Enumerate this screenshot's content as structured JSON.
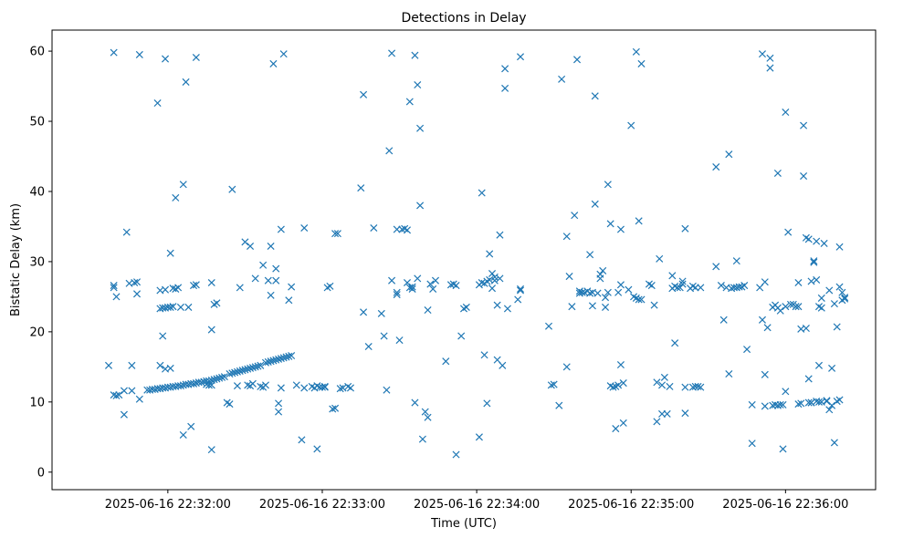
{
  "chart_data": {
    "type": "scatter",
    "title": "Detections in Delay",
    "xlabel": "Time (UTC)",
    "ylabel": "Bistatic Delay (km)",
    "marker": "x",
    "color": "#1f77b4",
    "x_unit": "seconds after 2025-06-16 22:32:00",
    "xlim": [
      -45,
      275
    ],
    "ylim": [
      -2.5,
      63
    ],
    "xticks": [
      {
        "value": 0,
        "label": "2025-06-16 22:32:00"
      },
      {
        "value": 60,
        "label": "2025-06-16 22:33:00"
      },
      {
        "value": 120,
        "label": "2025-06-16 22:34:00"
      },
      {
        "value": 180,
        "label": "2025-06-16 22:35:00"
      },
      {
        "value": 240,
        "label": "2025-06-16 22:36:00"
      }
    ],
    "yticks": [
      {
        "value": 0,
        "label": "0"
      },
      {
        "value": 10,
        "label": "10"
      },
      {
        "value": 20,
        "label": "20"
      },
      {
        "value": 30,
        "label": "30"
      },
      {
        "value": 40,
        "label": "40"
      },
      {
        "value": 50,
        "label": "50"
      },
      {
        "value": 60,
        "label": "60"
      }
    ],
    "points": [
      [
        -23,
        15.2
      ],
      [
        -21,
        26.3
      ],
      [
        -21,
        26.6
      ],
      [
        -20,
        25.0
      ],
      [
        -21,
        11.0
      ],
      [
        -20,
        10.9
      ],
      [
        -19,
        11.0
      ],
      [
        -17,
        8.2
      ],
      [
        -17,
        11.6
      ],
      [
        -16,
        34.2
      ],
      [
        -15,
        26.9
      ],
      [
        -14,
        15.2
      ],
      [
        -14,
        11.6
      ],
      [
        -13,
        27.0
      ],
      [
        -12,
        27.1
      ],
      [
        -12,
        25.4
      ],
      [
        -11,
        10.4
      ],
      [
        -21,
        59.8
      ],
      [
        -11,
        59.5
      ],
      [
        -8,
        11.7
      ],
      [
        -7,
        11.7
      ],
      [
        -6,
        11.8
      ],
      [
        -5,
        11.8
      ],
      [
        -4,
        11.9
      ],
      [
        -3,
        11.9
      ],
      [
        -2,
        12.0
      ],
      [
        -1,
        12.0
      ],
      [
        0,
        12.1
      ],
      [
        1,
        12.1
      ],
      [
        2,
        12.2
      ],
      [
        3,
        12.2
      ],
      [
        4,
        12.3
      ],
      [
        5,
        12.3
      ],
      [
        6,
        12.4
      ],
      [
        7,
        12.5
      ],
      [
        8,
        12.5
      ],
      [
        9,
        12.6
      ],
      [
        10,
        12.6
      ],
      [
        11,
        12.7
      ],
      [
        12,
        12.8
      ],
      [
        13,
        12.8
      ],
      [
        14,
        12.9
      ],
      [
        15,
        13.0
      ],
      [
        16,
        13.0
      ],
      [
        17,
        13.1
      ],
      [
        18,
        13.2
      ],
      [
        19,
        13.3
      ],
      [
        20,
        13.4
      ],
      [
        21,
        13.5
      ],
      [
        22,
        13.6
      ],
      [
        24,
        14.0
      ],
      [
        25,
        14.1
      ],
      [
        26,
        14.2
      ],
      [
        27,
        14.3
      ],
      [
        28,
        14.4
      ],
      [
        29,
        14.5
      ],
      [
        30,
        14.6
      ],
      [
        31,
        14.7
      ],
      [
        32,
        14.8
      ],
      [
        33,
        14.9
      ],
      [
        34,
        15.0
      ],
      [
        35,
        15.1
      ],
      [
        36,
        15.2
      ],
      [
        38,
        15.6
      ],
      [
        39,
        15.7
      ],
      [
        40,
        15.8
      ],
      [
        41,
        15.9
      ],
      [
        42,
        16.0
      ],
      [
        43,
        16.1
      ],
      [
        44,
        16.2
      ],
      [
        45,
        16.3
      ],
      [
        46,
        16.4
      ],
      [
        47,
        16.5
      ],
      [
        48,
        16.6
      ],
      [
        -3,
        15.2
      ],
      [
        -3,
        23.3
      ],
      [
        -2,
        23.4
      ],
      [
        -1,
        23.4
      ],
      [
        0,
        23.5
      ],
      [
        1,
        23.5
      ],
      [
        2,
        23.6
      ],
      [
        -2,
        19.4
      ],
      [
        -3,
        25.9
      ],
      [
        -1,
        26.0
      ],
      [
        2,
        26.2
      ],
      [
        3,
        26.1
      ],
      [
        4,
        26.3
      ],
      [
        -1,
        14.7
      ],
      [
        1,
        14.8
      ],
      [
        -4,
        52.6
      ],
      [
        -1,
        58.9
      ],
      [
        1,
        31.2
      ],
      [
        3,
        39.1
      ],
      [
        5,
        23.5
      ],
      [
        6,
        41.0
      ],
      [
        7,
        55.6
      ],
      [
        8,
        23.5
      ],
      [
        9,
        6.5
      ],
      [
        10,
        26.6
      ],
      [
        11,
        26.7
      ],
      [
        11,
        59.1
      ],
      [
        6,
        5.3
      ],
      [
        15,
        12.5
      ],
      [
        16,
        12.4
      ],
      [
        17,
        12.4
      ],
      [
        17,
        3.2
      ],
      [
        17,
        20.3
      ],
      [
        17,
        27.0
      ],
      [
        18,
        23.9
      ],
      [
        19,
        24.1
      ],
      [
        23,
        9.9
      ],
      [
        24,
        9.7
      ],
      [
        25,
        40.3
      ],
      [
        27,
        12.3
      ],
      [
        28,
        26.3
      ],
      [
        30,
        32.8
      ],
      [
        31,
        12.4
      ],
      [
        32,
        12.3
      ],
      [
        32,
        32.2
      ],
      [
        33,
        12.6
      ],
      [
        34,
        27.6
      ],
      [
        36,
        12.2
      ],
      [
        37,
        12.1
      ],
      [
        37,
        29.5
      ],
      [
        38,
        12.4
      ],
      [
        39,
        27.3
      ],
      [
        40,
        32.2
      ],
      [
        40,
        25.2
      ],
      [
        41,
        58.2
      ],
      [
        42,
        29.0
      ],
      [
        42,
        27.3
      ],
      [
        43,
        9.8
      ],
      [
        43,
        8.6
      ],
      [
        44,
        34.6
      ],
      [
        45,
        59.6
      ],
      [
        44,
        12.0
      ],
      [
        47,
        24.5
      ],
      [
        48,
        26.4
      ],
      [
        50,
        12.4
      ],
      [
        53,
        34.8
      ],
      [
        52,
        4.6
      ],
      [
        53,
        12.0
      ],
      [
        56,
        12.2
      ],
      [
        57,
        12.0
      ],
      [
        58,
        12.3
      ],
      [
        59,
        12.1
      ],
      [
        60,
        12.1
      ],
      [
        61,
        12.2
      ],
      [
        62,
        26.3
      ],
      [
        63,
        26.5
      ],
      [
        65,
        34.0
      ],
      [
        66,
        34.0
      ],
      [
        58,
        3.3
      ],
      [
        61,
        12.1
      ],
      [
        64,
        9.0
      ],
      [
        65,
        9.1
      ],
      [
        67,
        11.9
      ],
      [
        68,
        12.0
      ],
      [
        70,
        12.2
      ],
      [
        71,
        12.0
      ],
      [
        75,
        40.5
      ],
      [
        76,
        53.8
      ],
      [
        76,
        22.8
      ],
      [
        78,
        17.9
      ],
      [
        80,
        34.8
      ],
      [
        83,
        22.6
      ],
      [
        84,
        19.4
      ],
      [
        85,
        11.7
      ],
      [
        86,
        45.8
      ],
      [
        87,
        59.7
      ],
      [
        87,
        27.3
      ],
      [
        89,
        25.3
      ],
      [
        89,
        25.6
      ],
      [
        89,
        34.6
      ],
      [
        90,
        18.8
      ],
      [
        91,
        34.6
      ],
      [
        92,
        34.7
      ],
      [
        93,
        27.0
      ],
      [
        93,
        34.5
      ],
      [
        94,
        26.3
      ],
      [
        95,
        26.1
      ],
      [
        95,
        26.4
      ],
      [
        94,
        52.8
      ],
      [
        96,
        59.4
      ],
      [
        97,
        55.2
      ],
      [
        96,
        9.9
      ],
      [
        97,
        27.6
      ],
      [
        98,
        38.0
      ],
      [
        98,
        49.0
      ],
      [
        99,
        4.7
      ],
      [
        100,
        8.6
      ],
      [
        101,
        7.8
      ],
      [
        101,
        23.1
      ],
      [
        102,
        26.8
      ],
      [
        103,
        26.1
      ],
      [
        104,
        27.3
      ],
      [
        108,
        15.8
      ],
      [
        110,
        26.7
      ],
      [
        111,
        26.8
      ],
      [
        112,
        26.6
      ],
      [
        114,
        19.4
      ],
      [
        115,
        23.3
      ],
      [
        116,
        23.5
      ],
      [
        112,
        2.5
      ],
      [
        121,
        5.0
      ],
      [
        121,
        26.7
      ],
      [
        122,
        27.0
      ],
      [
        122,
        39.8
      ],
      [
        123,
        16.7
      ],
      [
        123,
        26.9
      ],
      [
        124,
        27.2
      ],
      [
        124,
        9.8
      ],
      [
        125,
        31.1
      ],
      [
        125,
        27.4
      ],
      [
        126,
        28.3
      ],
      [
        126,
        26.2
      ],
      [
        127,
        27.3
      ],
      [
        127,
        27.8
      ],
      [
        128,
        16.0
      ],
      [
        128,
        23.8
      ],
      [
        129,
        27.6
      ],
      [
        129,
        33.8
      ],
      [
        130,
        15.2
      ],
      [
        131,
        57.5
      ],
      [
        131,
        54.7
      ],
      [
        132,
        23.3
      ],
      [
        136,
        24.6
      ],
      [
        137,
        25.9
      ],
      [
        137,
        26.1
      ],
      [
        137,
        59.2
      ],
      [
        148,
        20.8
      ],
      [
        149,
        12.4
      ],
      [
        150,
        12.5
      ],
      [
        152,
        9.5
      ],
      [
        153,
        56.0
      ],
      [
        155,
        15.0
      ],
      [
        155,
        33.6
      ],
      [
        156,
        27.9
      ],
      [
        157,
        23.6
      ],
      [
        158,
        36.6
      ],
      [
        159,
        58.8
      ],
      [
        160,
        25.8
      ],
      [
        160,
        25.5
      ],
      [
        161,
        25.6
      ],
      [
        162,
        25.6
      ],
      [
        163,
        25.8
      ],
      [
        164,
        31.0
      ],
      [
        164,
        25.5
      ],
      [
        165,
        25.6
      ],
      [
        165,
        23.7
      ],
      [
        166,
        38.2
      ],
      [
        166,
        53.6
      ],
      [
        167,
        25.5
      ],
      [
        168,
        28.2
      ],
      [
        168,
        27.6
      ],
      [
        169,
        28.7
      ],
      [
        170,
        24.9
      ],
      [
        170,
        23.5
      ],
      [
        171,
        25.6
      ],
      [
        171,
        41.0
      ],
      [
        172,
        35.4
      ],
      [
        172,
        12.3
      ],
      [
        173,
        12.1
      ],
      [
        174,
        6.2
      ],
      [
        174,
        12.2
      ],
      [
        175,
        25.6
      ],
      [
        175,
        12.4
      ],
      [
        176,
        26.7
      ],
      [
        176,
        34.6
      ],
      [
        176,
        15.3
      ],
      [
        177,
        12.7
      ],
      [
        177,
        7.0
      ],
      [
        179,
        26.0
      ],
      [
        180,
        49.4
      ],
      [
        181,
        25.0
      ],
      [
        182,
        24.8
      ],
      [
        182,
        59.9
      ],
      [
        183,
        35.8
      ],
      [
        183,
        24.6
      ],
      [
        184,
        58.2
      ],
      [
        184,
        24.6
      ],
      [
        187,
        26.8
      ],
      [
        188,
        26.6
      ],
      [
        189,
        23.8
      ],
      [
        190,
        12.8
      ],
      [
        190,
        7.2
      ],
      [
        191,
        30.4
      ],
      [
        192,
        12.4
      ],
      [
        192,
        8.3
      ],
      [
        193,
        13.5
      ],
      [
        194,
        8.3
      ],
      [
        195,
        12.2
      ],
      [
        196,
        26.2
      ],
      [
        196,
        28.0
      ],
      [
        197,
        26.5
      ],
      [
        197,
        18.4
      ],
      [
        198,
        26.3
      ],
      [
        199,
        26.3
      ],
      [
        200,
        26.8
      ],
      [
        200,
        27.2
      ],
      [
        201,
        34.7
      ],
      [
        201,
        12.1
      ],
      [
        201,
        8.4
      ],
      [
        203,
        26.2
      ],
      [
        204,
        26.5
      ],
      [
        204,
        12.1
      ],
      [
        205,
        12.2
      ],
      [
        205,
        26.3
      ],
      [
        206,
        12.2
      ],
      [
        207,
        12.1
      ],
      [
        207,
        26.3
      ],
      [
        213,
        43.5
      ],
      [
        213,
        29.3
      ],
      [
        215,
        26.6
      ],
      [
        216,
        21.7
      ],
      [
        217,
        26.3
      ],
      [
        218,
        45.3
      ],
      [
        218,
        14.0
      ],
      [
        219,
        26.2
      ],
      [
        220,
        26.3
      ],
      [
        221,
        26.3
      ],
      [
        221,
        30.1
      ],
      [
        222,
        26.4
      ],
      [
        223,
        26.4
      ],
      [
        224,
        26.6
      ],
      [
        225,
        17.5
      ],
      [
        227,
        9.6
      ],
      [
        227,
        4.1
      ],
      [
        230,
        26.3
      ],
      [
        231,
        21.7
      ],
      [
        231,
        59.6
      ],
      [
        232,
        27.1
      ],
      [
        232,
        13.9
      ],
      [
        232,
        9.4
      ],
      [
        233,
        20.6
      ],
      [
        234,
        57.6
      ],
      [
        234,
        59.0
      ],
      [
        235,
        9.5
      ],
      [
        235,
        23.5
      ],
      [
        236,
        9.6
      ],
      [
        236,
        23.8
      ],
      [
        237,
        9.5
      ],
      [
        237,
        42.6
      ],
      [
        237,
        23.4
      ],
      [
        238,
        23.0
      ],
      [
        238,
        9.6
      ],
      [
        239,
        3.3
      ],
      [
        239,
        9.6
      ],
      [
        240,
        23.6
      ],
      [
        240,
        11.5
      ],
      [
        240,
        51.3
      ],
      [
        241,
        34.2
      ],
      [
        242,
        23.9
      ],
      [
        243,
        23.9
      ],
      [
        244,
        23.6
      ],
      [
        245,
        27.0
      ],
      [
        245,
        23.6
      ],
      [
        245,
        9.7
      ],
      [
        246,
        20.4
      ],
      [
        246,
        9.8
      ],
      [
        247,
        49.4
      ],
      [
        247,
        42.2
      ],
      [
        248,
        33.4
      ],
      [
        248,
        20.5
      ],
      [
        249,
        33.2
      ],
      [
        250,
        27.2
      ],
      [
        249,
        9.9
      ],
      [
        249,
        13.3
      ],
      [
        250,
        9.9
      ],
      [
        250,
        9.9
      ],
      [
        251,
        30.1
      ],
      [
        251,
        29.9
      ],
      [
        252,
        32.9
      ],
      [
        252,
        27.4
      ],
      [
        252,
        10.1
      ],
      [
        253,
        15.2
      ],
      [
        253,
        23.6
      ],
      [
        253,
        10.0
      ],
      [
        254,
        10.0
      ],
      [
        254,
        24.8
      ],
      [
        254,
        23.4
      ],
      [
        255,
        32.6
      ],
      [
        256,
        10.1
      ],
      [
        256,
        10.2
      ],
      [
        257,
        25.9
      ],
      [
        257,
        8.9
      ],
      [
        258,
        14.8
      ],
      [
        258,
        9.5
      ],
      [
        259,
        24.0
      ],
      [
        259,
        4.2
      ],
      [
        260,
        10.1
      ],
      [
        260,
        20.7
      ],
      [
        261,
        26.4
      ],
      [
        261,
        32.1
      ],
      [
        261,
        10.3
      ],
      [
        262,
        25.6
      ],
      [
        262,
        24.5
      ],
      [
        263,
        24.9
      ],
      [
        263,
        24.7
      ]
    ]
  }
}
